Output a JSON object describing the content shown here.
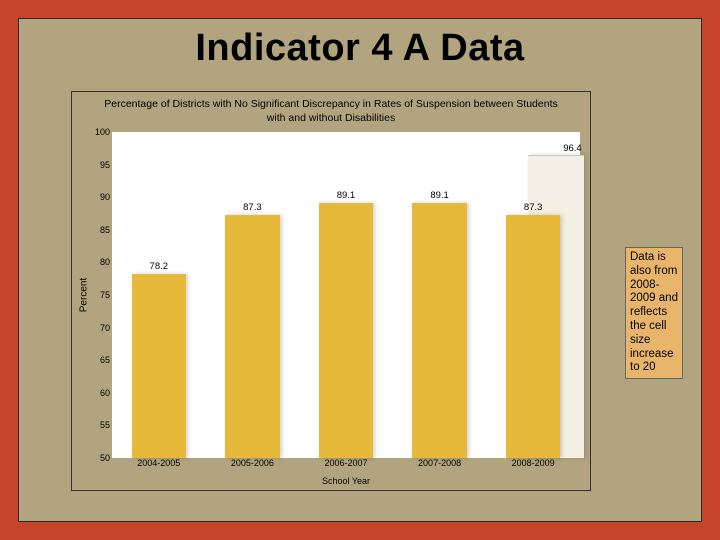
{
  "title": "Indicator 4 A Data",
  "annotation": "Data is also from 2008-2009 and reflects the cell size increase to 20",
  "chart": {
    "type": "bar",
    "title": "Percentage of Districts with No Significant Discrepancy in Rates of Suspension between Students with and without Disabilities",
    "ylabel": "Percent",
    "xlabel": "School Year",
    "ylim": [
      50,
      100
    ],
    "ytick_step": 5,
    "categories": [
      "2004-2005",
      "2005-2006",
      "2006-2007",
      "2007-2008",
      "2008-2009"
    ],
    "values": [
      78.2,
      87.3,
      89.1,
      89.1,
      87.3
    ],
    "extra": {
      "value": 96.4,
      "color": "#f4f0e6"
    },
    "bar_colors": [
      "#e6b93a",
      "#e6b93a",
      "#e6b93a",
      "#e6b93a",
      "#e6b93a"
    ],
    "bar_width": 0.58,
    "background_color": "#ffffff",
    "panel_color": "#b1a47f",
    "title_fontsize": 10.5,
    "label_fontsize": 10,
    "tick_fontsize": 9
  },
  "colors": {
    "outer": "#c7432a",
    "inner": "#b1a47f",
    "annotation_bg": "#e9b56b"
  }
}
